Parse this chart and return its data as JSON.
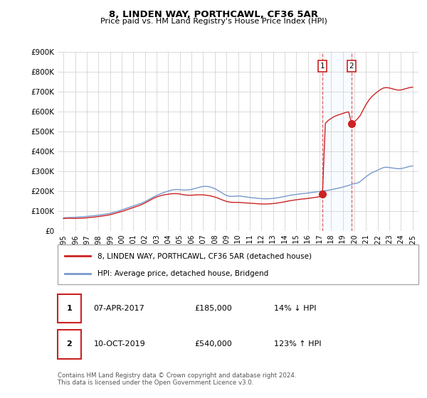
{
  "title": "8, LINDEN WAY, PORTHCAWL, CF36 5AR",
  "subtitle": "Price paid vs. HM Land Registry's House Price Index (HPI)",
  "ylim": [
    0,
    900000
  ],
  "yticks": [
    0,
    100000,
    200000,
    300000,
    400000,
    500000,
    600000,
    700000,
    800000,
    900000
  ],
  "ytick_labels": [
    "£0",
    "£100K",
    "£200K",
    "£300K",
    "£400K",
    "£500K",
    "£600K",
    "£700K",
    "£800K",
    "£900K"
  ],
  "hpi_color": "#7799cc",
  "price_color": "#cc2222",
  "sale1_x": 2017.25,
  "sale1_price": 185000,
  "sale2_x": 2019.75,
  "sale2_price": 540000,
  "legend_label_price": "8, LINDEN WAY, PORTHCAWL, CF36 5AR (detached house)",
  "legend_label_hpi": "HPI: Average price, detached house, Bridgend",
  "table_row1": [
    "1",
    "07-APR-2017",
    "£185,000",
    "14% ↓ HPI"
  ],
  "table_row2": [
    "2",
    "10-OCT-2019",
    "£540,000",
    "123% ↑ HPI"
  ],
  "footer": "Contains HM Land Registry data © Crown copyright and database right 2024.\nThis data is licensed under the Open Government Licence v3.0.",
  "xlim": [
    1994.5,
    2025.5
  ],
  "xticks": [
    1995,
    1996,
    1997,
    1998,
    1999,
    2000,
    2001,
    2002,
    2003,
    2004,
    2005,
    2006,
    2007,
    2008,
    2009,
    2010,
    2011,
    2012,
    2013,
    2014,
    2015,
    2016,
    2017,
    2018,
    2019,
    2020,
    2021,
    2022,
    2023,
    2024,
    2025
  ],
  "background_color": "#ffffff",
  "grid_color": "#cccccc",
  "span_color": "#ddeeff",
  "hpi_data": [
    [
      1995.0,
      65000
    ],
    [
      1995.25,
      66000
    ],
    [
      1995.5,
      67000
    ],
    [
      1995.75,
      67500
    ],
    [
      1996.0,
      68000
    ],
    [
      1996.25,
      69000
    ],
    [
      1996.5,
      70000
    ],
    [
      1996.75,
      71000
    ],
    [
      1997.0,
      72500
    ],
    [
      1997.25,
      74000
    ],
    [
      1997.5,
      75500
    ],
    [
      1997.75,
      77000
    ],
    [
      1998.0,
      79000
    ],
    [
      1998.25,
      81000
    ],
    [
      1998.5,
      83000
    ],
    [
      1998.75,
      85000
    ],
    [
      1999.0,
      88000
    ],
    [
      1999.25,
      92000
    ],
    [
      1999.5,
      96000
    ],
    [
      1999.75,
      100000
    ],
    [
      2000.0,
      105000
    ],
    [
      2000.25,
      110000
    ],
    [
      2000.5,
      115000
    ],
    [
      2000.75,
      120000
    ],
    [
      2001.0,
      125000
    ],
    [
      2001.25,
      130000
    ],
    [
      2001.5,
      135000
    ],
    [
      2001.75,
      140000
    ],
    [
      2002.0,
      147000
    ],
    [
      2002.25,
      155000
    ],
    [
      2002.5,
      163000
    ],
    [
      2002.75,
      171000
    ],
    [
      2003.0,
      178000
    ],
    [
      2003.25,
      184000
    ],
    [
      2003.5,
      190000
    ],
    [
      2003.75,
      195000
    ],
    [
      2004.0,
      200000
    ],
    [
      2004.25,
      204000
    ],
    [
      2004.5,
      207000
    ],
    [
      2004.75,
      208000
    ],
    [
      2005.0,
      207000
    ],
    [
      2005.25,
      205000
    ],
    [
      2005.5,
      205000
    ],
    [
      2005.75,
      206000
    ],
    [
      2006.0,
      208000
    ],
    [
      2006.25,
      212000
    ],
    [
      2006.5,
      216000
    ],
    [
      2006.75,
      220000
    ],
    [
      2007.0,
      223000
    ],
    [
      2007.25,
      224000
    ],
    [
      2007.5,
      222000
    ],
    [
      2007.75,
      218000
    ],
    [
      2008.0,
      212000
    ],
    [
      2008.25,
      204000
    ],
    [
      2008.5,
      195000
    ],
    [
      2008.75,
      186000
    ],
    [
      2009.0,
      178000
    ],
    [
      2009.25,
      174000
    ],
    [
      2009.5,
      173000
    ],
    [
      2009.75,
      174000
    ],
    [
      2010.0,
      175000
    ],
    [
      2010.25,
      174000
    ],
    [
      2010.5,
      172000
    ],
    [
      2010.75,
      170000
    ],
    [
      2011.0,
      168000
    ],
    [
      2011.25,
      166000
    ],
    [
      2011.5,
      165000
    ],
    [
      2011.75,
      163000
    ],
    [
      2012.0,
      162000
    ],
    [
      2012.25,
      161000
    ],
    [
      2012.5,
      161000
    ],
    [
      2012.75,
      162000
    ],
    [
      2013.0,
      163000
    ],
    [
      2013.25,
      165000
    ],
    [
      2013.5,
      167000
    ],
    [
      2013.75,
      170000
    ],
    [
      2014.0,
      173000
    ],
    [
      2014.25,
      176000
    ],
    [
      2014.5,
      179000
    ],
    [
      2014.75,
      181000
    ],
    [
      2015.0,
      183000
    ],
    [
      2015.25,
      185000
    ],
    [
      2015.5,
      187000
    ],
    [
      2015.75,
      188000
    ],
    [
      2016.0,
      190000
    ],
    [
      2016.25,
      192000
    ],
    [
      2016.5,
      194000
    ],
    [
      2016.75,
      196000
    ],
    [
      2017.0,
      198000
    ],
    [
      2017.25,
      200000
    ],
    [
      2017.5,
      202000
    ],
    [
      2017.75,
      204000
    ],
    [
      2018.0,
      207000
    ],
    [
      2018.25,
      210000
    ],
    [
      2018.5,
      213000
    ],
    [
      2018.75,
      216000
    ],
    [
      2019.0,
      220000
    ],
    [
      2019.25,
      224000
    ],
    [
      2019.5,
      228000
    ],
    [
      2019.75,
      233000
    ],
    [
      2020.0,
      238000
    ],
    [
      2020.25,
      240000
    ],
    [
      2020.5,
      248000
    ],
    [
      2020.75,
      260000
    ],
    [
      2021.0,
      272000
    ],
    [
      2021.25,
      283000
    ],
    [
      2021.5,
      292000
    ],
    [
      2021.75,
      298000
    ],
    [
      2022.0,
      305000
    ],
    [
      2022.25,
      312000
    ],
    [
      2022.5,
      318000
    ],
    [
      2022.75,
      320000
    ],
    [
      2023.0,
      318000
    ],
    [
      2023.25,
      316000
    ],
    [
      2023.5,
      314000
    ],
    [
      2023.75,
      312000
    ],
    [
      2024.0,
      313000
    ],
    [
      2024.25,
      316000
    ],
    [
      2024.5,
      320000
    ],
    [
      2024.75,
      324000
    ],
    [
      2025.0,
      326000
    ]
  ],
  "price_data": [
    [
      1995.0,
      62000
    ],
    [
      1995.25,
      63000
    ],
    [
      1995.5,
      63500
    ],
    [
      1995.75,
      63000
    ],
    [
      1996.0,
      62500
    ],
    [
      1996.25,
      63000
    ],
    [
      1996.5,
      63500
    ],
    [
      1996.75,
      64000
    ],
    [
      1997.0,
      65500
    ],
    [
      1997.25,
      67000
    ],
    [
      1997.5,
      68500
    ],
    [
      1997.75,
      70000
    ],
    [
      1998.0,
      72000
    ],
    [
      1998.25,
      74000
    ],
    [
      1998.5,
      76000
    ],
    [
      1998.75,
      78000
    ],
    [
      1999.0,
      81000
    ],
    [
      1999.25,
      85000
    ],
    [
      1999.5,
      89000
    ],
    [
      1999.75,
      93000
    ],
    [
      2000.0,
      97000
    ],
    [
      2000.25,
      102000
    ],
    [
      2000.5,
      107000
    ],
    [
      2000.75,
      112000
    ],
    [
      2001.0,
      117000
    ],
    [
      2001.25,
      122000
    ],
    [
      2001.5,
      127000
    ],
    [
      2001.75,
      133000
    ],
    [
      2002.0,
      140000
    ],
    [
      2002.25,
      148000
    ],
    [
      2002.5,
      156000
    ],
    [
      2002.75,
      164000
    ],
    [
      2003.0,
      170000
    ],
    [
      2003.25,
      175000
    ],
    [
      2003.5,
      179000
    ],
    [
      2003.75,
      182000
    ],
    [
      2004.0,
      184000
    ],
    [
      2004.25,
      186000
    ],
    [
      2004.5,
      187000
    ],
    [
      2004.75,
      187000
    ],
    [
      2005.0,
      185000
    ],
    [
      2005.25,
      182000
    ],
    [
      2005.5,
      180000
    ],
    [
      2005.75,
      179000
    ],
    [
      2006.0,
      179000
    ],
    [
      2006.25,
      180000
    ],
    [
      2006.5,
      181000
    ],
    [
      2006.75,
      181000
    ],
    [
      2007.0,
      181000
    ],
    [
      2007.25,
      179000
    ],
    [
      2007.5,
      177000
    ],
    [
      2007.75,
      174000
    ],
    [
      2008.0,
      170000
    ],
    [
      2008.25,
      165000
    ],
    [
      2008.5,
      159000
    ],
    [
      2008.75,
      153000
    ],
    [
      2009.0,
      148000
    ],
    [
      2009.25,
      145000
    ],
    [
      2009.5,
      143000
    ],
    [
      2009.75,
      143000
    ],
    [
      2010.0,
      143000
    ],
    [
      2010.25,
      142000
    ],
    [
      2010.5,
      141000
    ],
    [
      2010.75,
      140000
    ],
    [
      2011.0,
      139000
    ],
    [
      2011.25,
      138000
    ],
    [
      2011.5,
      137000
    ],
    [
      2011.75,
      136000
    ],
    [
      2012.0,
      135000
    ],
    [
      2012.25,
      135000
    ],
    [
      2012.5,
      135000
    ],
    [
      2012.75,
      136000
    ],
    [
      2013.0,
      137000
    ],
    [
      2013.25,
      139000
    ],
    [
      2013.5,
      141000
    ],
    [
      2013.75,
      143000
    ],
    [
      2014.0,
      146000
    ],
    [
      2014.25,
      149000
    ],
    [
      2014.5,
      152000
    ],
    [
      2014.75,
      154000
    ],
    [
      2015.0,
      156000
    ],
    [
      2015.25,
      158000
    ],
    [
      2015.5,
      160000
    ],
    [
      2015.75,
      161000
    ],
    [
      2016.0,
      163000
    ],
    [
      2016.25,
      165000
    ],
    [
      2016.5,
      167000
    ],
    [
      2016.75,
      169000
    ],
    [
      2017.0,
      172000
    ],
    [
      2017.25,
      185000
    ],
    [
      2017.5,
      540000
    ],
    [
      2017.75,
      555000
    ],
    [
      2018.0,
      565000
    ],
    [
      2018.25,
      574000
    ],
    [
      2018.5,
      580000
    ],
    [
      2018.75,
      585000
    ],
    [
      2019.0,
      590000
    ],
    [
      2019.25,
      595000
    ],
    [
      2019.5,
      598000
    ],
    [
      2019.75,
      540000
    ],
    [
      2020.0,
      548000
    ],
    [
      2020.25,
      562000
    ],
    [
      2020.5,
      580000
    ],
    [
      2020.75,
      608000
    ],
    [
      2021.0,
      635000
    ],
    [
      2021.25,
      658000
    ],
    [
      2021.5,
      675000
    ],
    [
      2021.75,
      688000
    ],
    [
      2022.0,
      700000
    ],
    [
      2022.25,
      710000
    ],
    [
      2022.5,
      718000
    ],
    [
      2022.75,
      720000
    ],
    [
      2023.0,
      718000
    ],
    [
      2023.25,
      714000
    ],
    [
      2023.5,
      710000
    ],
    [
      2023.75,
      707000
    ],
    [
      2024.0,
      708000
    ],
    [
      2024.25,
      712000
    ],
    [
      2024.5,
      716000
    ],
    [
      2024.75,
      720000
    ],
    [
      2025.0,
      722000
    ]
  ]
}
